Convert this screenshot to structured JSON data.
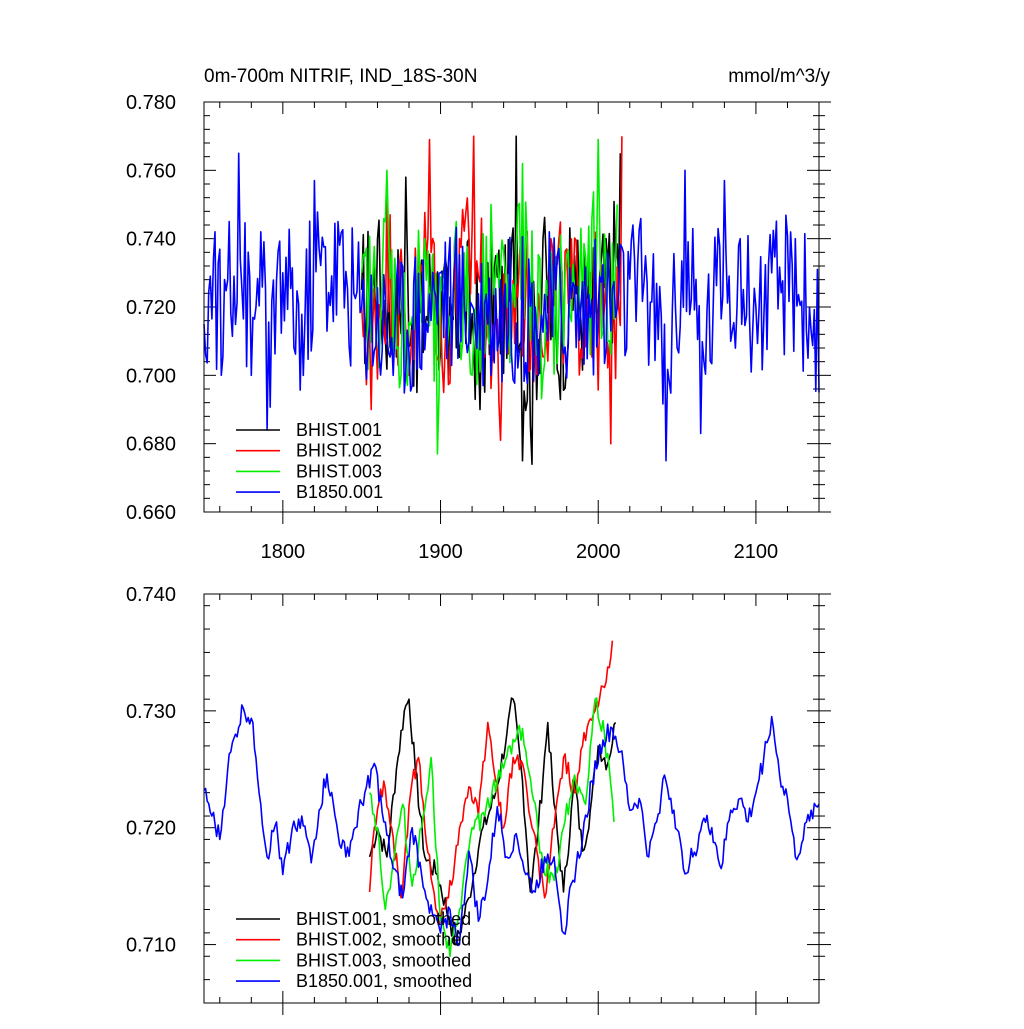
{
  "chart_data": [
    {
      "type": "line",
      "title_left": "0m-700m NITRIF, IND_18S-30N",
      "title_right": "mmol/m^3/y",
      "xlim": [
        1750,
        2140
      ],
      "ylim": [
        0.66,
        0.78
      ],
      "xticks": [
        1800,
        1900,
        2000,
        2100
      ],
      "xtick_labels": [
        "1800",
        "1900",
        "2000",
        "2100"
      ],
      "yticks": [
        0.66,
        0.68,
        0.7,
        0.72,
        0.74,
        0.76,
        0.78
      ],
      "ytick_labels": [
        "0.660",
        "0.680",
        "0.700",
        "0.720",
        "0.740",
        "0.760",
        "0.780"
      ],
      "legend_position": "bottom-left",
      "series": [
        {
          "name": "BHIST.001",
          "color": "#000000",
          "x_start": 1850,
          "x_end": 2014,
          "points": [
            [
              1850,
              0.725
            ],
            [
              1860,
              0.74
            ],
            [
              1870,
              0.705
            ],
            [
              1878,
              0.758
            ],
            [
              1885,
              0.695
            ],
            [
              1895,
              0.735
            ],
            [
              1905,
              0.7
            ],
            [
              1915,
              0.73
            ],
            [
              1925,
              0.69
            ],
            [
              1935,
              0.735
            ],
            [
              1942,
              0.705
            ],
            [
              1948,
              0.77
            ],
            [
              1952,
              0.675
            ],
            [
              1958,
              0.674
            ],
            [
              1965,
              0.74
            ],
            [
              1975,
              0.7
            ],
            [
              1985,
              0.735
            ],
            [
              1995,
              0.71
            ],
            [
              2005,
              0.74
            ],
            [
              2014,
              0.765
            ]
          ]
        },
        {
          "name": "BHIST.002",
          "color": "#ff0000",
          "x_start": 1850,
          "x_end": 2015,
          "points": [
            [
              1850,
              0.72
            ],
            [
              1856,
              0.69
            ],
            [
              1866,
              0.755
            ],
            [
              1880,
              0.7
            ],
            [
              1893,
              0.769
            ],
            [
              1902,
              0.695
            ],
            [
              1912,
              0.74
            ],
            [
              1921,
              0.77
            ],
            [
              1930,
              0.72
            ],
            [
              1938,
              0.681
            ],
            [
              1950,
              0.735
            ],
            [
              1960,
              0.71
            ],
            [
              1970,
              0.74
            ],
            [
              1982,
              0.72
            ],
            [
              1995,
              0.73
            ],
            [
              2008,
              0.68
            ],
            [
              2015,
              0.77
            ]
          ]
        },
        {
          "name": "BHIST.003",
          "color": "#00ee00",
          "x_start": 1850,
          "x_end": 2012,
          "points": [
            [
              1850,
              0.73
            ],
            [
              1860,
              0.72
            ],
            [
              1866,
              0.76
            ],
            [
              1875,
              0.7
            ],
            [
              1890,
              0.74
            ],
            [
              1898,
              0.677
            ],
            [
              1910,
              0.745
            ],
            [
              1920,
              0.7
            ],
            [
              1932,
              0.75
            ],
            [
              1945,
              0.72
            ],
            [
              1952,
              0.762
            ],
            [
              1965,
              0.7
            ],
            [
              1980,
              0.735
            ],
            [
              1990,
              0.72
            ],
            [
              2000,
              0.769
            ],
            [
              2006,
              0.71
            ],
            [
              2012,
              0.75
            ]
          ]
        },
        {
          "name": "B1850.001",
          "color": "#0000ff",
          "x_start": 1750,
          "x_end": 2140,
          "points": [
            [
              1750,
              0.715
            ],
            [
              1757,
              0.742
            ],
            [
              1761,
              0.7
            ],
            [
              1766,
              0.745
            ],
            [
              1772,
              0.765
            ],
            [
              1780,
              0.7
            ],
            [
              1786,
              0.742
            ],
            [
              1790,
              0.684
            ],
            [
              1800,
              0.73
            ],
            [
              1813,
              0.7
            ],
            [
              1820,
              0.757
            ],
            [
              1835,
              0.745
            ],
            [
              1850,
              0.72
            ],
            [
              1870,
              0.7
            ],
            [
              1900,
              0.73
            ],
            [
              1930,
              0.715
            ],
            [
              1960,
              0.72
            ],
            [
              2000,
              0.715
            ],
            [
              2030,
              0.735
            ],
            [
              2043,
              0.675
            ],
            [
              2055,
              0.76
            ],
            [
              2065,
              0.683
            ],
            [
              2080,
              0.757
            ],
            [
              2090,
              0.74
            ],
            [
              2100,
              0.72
            ],
            [
              2110,
              0.73
            ],
            [
              2125,
              0.74
            ],
            [
              2140,
              0.695
            ]
          ]
        }
      ]
    },
    {
      "type": "line",
      "xlim": [
        1750,
        2140
      ],
      "ylim": [
        0.705,
        0.74
      ],
      "xticks": [
        1800,
        1900,
        2000,
        2100
      ],
      "yticks": [
        0.71,
        0.72,
        0.73,
        0.74
      ],
      "ytick_labels": [
        "0.710",
        "0.720",
        "0.730",
        "0.740"
      ],
      "legend_position": "bottom-left",
      "series": [
        {
          "name": "BHIST.001, smoothed",
          "color": "#000000",
          "points": [
            [
              1855,
              0.7175
            ],
            [
              1860,
              0.72
            ],
            [
              1866,
              0.7175
            ],
            [
              1872,
              0.725
            ],
            [
              1877,
              0.73
            ],
            [
              1880,
              0.731
            ],
            [
              1884,
              0.725
            ],
            [
              1890,
              0.7175
            ],
            [
              1898,
              0.716
            ],
            [
              1906,
              0.712
            ],
            [
              1910,
              0.71
            ],
            [
              1918,
              0.714
            ],
            [
              1925,
              0.719
            ],
            [
              1935,
              0.723
            ],
            [
              1942,
              0.728
            ],
            [
              1946,
              0.731
            ],
            [
              1952,
              0.724
            ],
            [
              1957,
              0.7145
            ],
            [
              1962,
              0.72
            ],
            [
              1968,
              0.729
            ],
            [
              1972,
              0.722
            ],
            [
              1978,
              0.7145
            ],
            [
              1985,
              0.724
            ],
            [
              1990,
              0.718
            ],
            [
              1995,
              0.7215
            ],
            [
              2000,
              0.727
            ],
            [
              2006,
              0.7255
            ],
            [
              2011,
              0.729
            ]
          ]
        },
        {
          "name": "BHIST.002, smoothed",
          "color": "#ff0000",
          "points": [
            [
              1855,
              0.7145
            ],
            [
              1858,
              0.72
            ],
            [
              1864,
              0.724
            ],
            [
              1869,
              0.72
            ],
            [
              1875,
              0.714
            ],
            [
              1882,
              0.724
            ],
            [
              1886,
              0.726
            ],
            [
              1890,
              0.72
            ],
            [
              1895,
              0.715
            ],
            [
              1900,
              0.712
            ],
            [
              1905,
              0.714
            ],
            [
              1912,
              0.72
            ],
            [
              1918,
              0.7235
            ],
            [
              1924,
              0.721
            ],
            [
              1930,
              0.729
            ],
            [
              1935,
              0.724
            ],
            [
              1940,
              0.72
            ],
            [
              1946,
              0.726
            ],
            [
              1952,
              0.7255
            ],
            [
              1958,
              0.72
            ],
            [
              1966,
              0.714
            ],
            [
              1972,
              0.72
            ],
            [
              1978,
              0.726
            ],
            [
              1985,
              0.723
            ],
            [
              1990,
              0.727
            ],
            [
              1998,
              0.73
            ],
            [
              2004,
              0.732
            ],
            [
              2009,
              0.736
            ]
          ]
        },
        {
          "name": "BHIST.003, smoothed",
          "color": "#00ee00",
          "points": [
            [
              1855,
              0.723
            ],
            [
              1860,
              0.72
            ],
            [
              1865,
              0.713
            ],
            [
              1870,
              0.717
            ],
            [
              1876,
              0.722
            ],
            [
              1882,
              0.715
            ],
            [
              1888,
              0.72
            ],
            [
              1894,
              0.726
            ],
            [
              1900,
              0.712
            ],
            [
              1906,
              0.709
            ],
            [
              1912,
              0.713
            ],
            [
              1920,
              0.72
            ],
            [
              1928,
              0.721
            ],
            [
              1936,
              0.724
            ],
            [
              1944,
              0.727
            ],
            [
              1952,
              0.7285
            ],
            [
              1958,
              0.723
            ],
            [
              1965,
              0.717
            ],
            [
              1972,
              0.7155
            ],
            [
              1978,
              0.72
            ],
            [
              1985,
              0.7245
            ],
            [
              1992,
              0.722
            ],
            [
              1998,
              0.731
            ],
            [
              2004,
              0.728
            ],
            [
              2010,
              0.7205
            ]
          ]
        },
        {
          "name": "B1850.001, smoothed",
          "color": "#0000ff",
          "points": [
            [
              1750,
              0.7232
            ],
            [
              1755,
              0.721
            ],
            [
              1760,
              0.719
            ],
            [
              1765,
              0.725
            ],
            [
              1770,
              0.728
            ],
            [
              1775,
              0.7302
            ],
            [
              1781,
              0.729
            ],
            [
              1786,
              0.722
            ],
            [
              1790,
              0.7175
            ],
            [
              1796,
              0.7205
            ],
            [
              1800,
              0.716
            ],
            [
              1806,
              0.72
            ],
            [
              1812,
              0.721
            ],
            [
              1818,
              0.717
            ],
            [
              1823,
              0.7215
            ],
            [
              1828,
              0.7246
            ],
            [
              1835,
              0.7195
            ],
            [
              1840,
              0.7175
            ],
            [
              1846,
              0.72
            ],
            [
              1852,
              0.723
            ],
            [
              1858,
              0.7255
            ],
            [
              1864,
              0.7205
            ],
            [
              1870,
              0.7165
            ],
            [
              1876,
              0.714
            ],
            [
              1882,
              0.72
            ],
            [
              1888,
              0.716
            ],
            [
              1895,
              0.7125
            ],
            [
              1900,
              0.711
            ],
            [
              1906,
              0.713
            ],
            [
              1912,
              0.71
            ],
            [
              1918,
              0.718
            ],
            [
              1924,
              0.712
            ],
            [
              1930,
              0.7155
            ],
            [
              1936,
              0.7218
            ],
            [
              1942,
              0.7175
            ],
            [
              1948,
              0.7195
            ],
            [
              1954,
              0.716
            ],
            [
              1960,
              0.7145
            ],
            [
              1966,
              0.7175
            ],
            [
              1972,
              0.7175
            ],
            [
              1978,
              0.711
            ],
            [
              1984,
              0.7155
            ],
            [
              1990,
              0.719
            ],
            [
              1996,
              0.724
            ],
            [
              2003,
              0.7275
            ],
            [
              2009,
              0.7285
            ],
            [
              2014,
              0.7265
            ],
            [
              2020,
              0.7215
            ],
            [
              2026,
              0.7225
            ],
            [
              2032,
              0.7175
            ],
            [
              2037,
              0.7205
            ],
            [
              2042,
              0.7245
            ],
            [
              2048,
              0.7215
            ],
            [
              2054,
              0.7165
            ],
            [
              2060,
              0.7175
            ],
            [
              2066,
              0.7205
            ],
            [
              2072,
              0.72
            ],
            [
              2078,
              0.7165
            ],
            [
              2084,
              0.7215
            ],
            [
              2090,
              0.7225
            ],
            [
              2095,
              0.7205
            ],
            [
              2100,
              0.723
            ],
            [
              2105,
              0.726
            ],
            [
              2110,
              0.7295
            ],
            [
              2115,
              0.7245
            ],
            [
              2120,
              0.7225
            ],
            [
              2125,
              0.7175
            ],
            [
              2130,
              0.719
            ],
            [
              2135,
              0.7215
            ],
            [
              2140,
              0.722
            ]
          ]
        }
      ]
    }
  ]
}
